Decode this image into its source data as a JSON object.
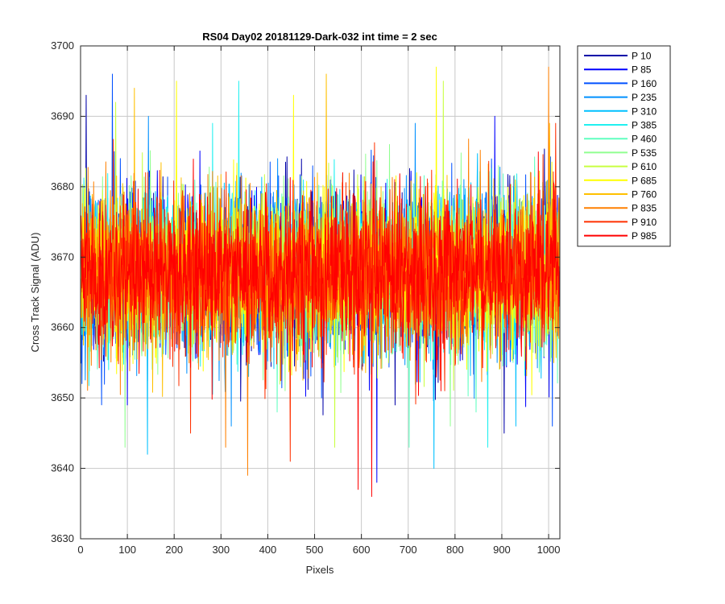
{
  "chart_data": {
    "type": "line",
    "title": "RS04 Day02 20181129-Dark-032 int time = 2 sec",
    "xlabel": "Pixels",
    "ylabel": "Cross Track Signal (ADU)",
    "xlim": [
      0,
      1024
    ],
    "ylim": [
      3630,
      3700
    ],
    "xticks": [
      0,
      100,
      200,
      300,
      400,
      500,
      600,
      700,
      800,
      900,
      1000
    ],
    "yticks": [
      3630,
      3640,
      3650,
      3660,
      3670,
      3680,
      3690,
      3700
    ],
    "grid": true,
    "legend_position": "outside-top-right",
    "series_mean": 3668,
    "series_noise_sigma": 5.5,
    "series": [
      {
        "name": "P 10",
        "color": "#0000a8",
        "extremes": [
          [
            12,
            3693
          ],
          [
            672,
            3649
          ],
          [
            905,
            3645
          ]
        ]
      },
      {
        "name": "P 85",
        "color": "#0000ff",
        "extremes": [
          [
            100,
            3649
          ],
          [
            633,
            3638
          ],
          [
            885,
            3690
          ]
        ]
      },
      {
        "name": "P 160",
        "color": "#0050ff",
        "extremes": [
          [
            68,
            3696
          ],
          [
            515,
            3650
          ],
          [
            1008,
            3646
          ]
        ]
      },
      {
        "name": "P 235",
        "color": "#0090ff",
        "extremes": [
          [
            145,
            3690
          ],
          [
            322,
            3646
          ],
          [
            715,
            3689
          ]
        ]
      },
      {
        "name": "P 310",
        "color": "#00c0ff",
        "extremes": [
          [
            143,
            3642
          ],
          [
            755,
            3640
          ],
          [
            930,
            3646
          ]
        ]
      },
      {
        "name": "P 385",
        "color": "#20f0f0",
        "extremes": [
          [
            282,
            3689
          ],
          [
            338,
            3695
          ],
          [
            870,
            3643
          ]
        ]
      },
      {
        "name": "P 460",
        "color": "#60ffc0",
        "extremes": [
          [
            420,
            3648
          ],
          [
            702,
            3643
          ],
          [
            845,
            3648
          ]
        ]
      },
      {
        "name": "P 535",
        "color": "#90ff90",
        "extremes": [
          [
            95,
            3643
          ],
          [
            660,
            3686
          ],
          [
            790,
            3646
          ]
        ]
      },
      {
        "name": "P 610",
        "color": "#c8ff40",
        "extremes": [
          [
            75,
            3692
          ],
          [
            543,
            3643
          ],
          [
            775,
            3695
          ]
        ]
      },
      {
        "name": "P 685",
        "color": "#ffff00",
        "extremes": [
          [
            205,
            3695
          ],
          [
            455,
            3693
          ],
          [
            760,
            3697
          ]
        ]
      },
      {
        "name": "P 760",
        "color": "#ffc000",
        "extremes": [
          [
            115,
            3694
          ],
          [
            525,
            3696
          ],
          [
            1002,
            3689
          ]
        ]
      },
      {
        "name": "P 835",
        "color": "#ff8000",
        "extremes": [
          [
            310,
            3643
          ],
          [
            357,
            3639
          ],
          [
            1000,
            3697
          ]
        ]
      },
      {
        "name": "P 910",
        "color": "#ff3000",
        "extremes": [
          [
            235,
            3645
          ],
          [
            448,
            3641
          ],
          [
            1015,
            3689
          ]
        ]
      },
      {
        "name": "P 985",
        "color": "#ff0000",
        "extremes": [
          [
            593,
            3637
          ],
          [
            622,
            3636
          ],
          [
            770,
            3651
          ]
        ]
      }
    ]
  }
}
